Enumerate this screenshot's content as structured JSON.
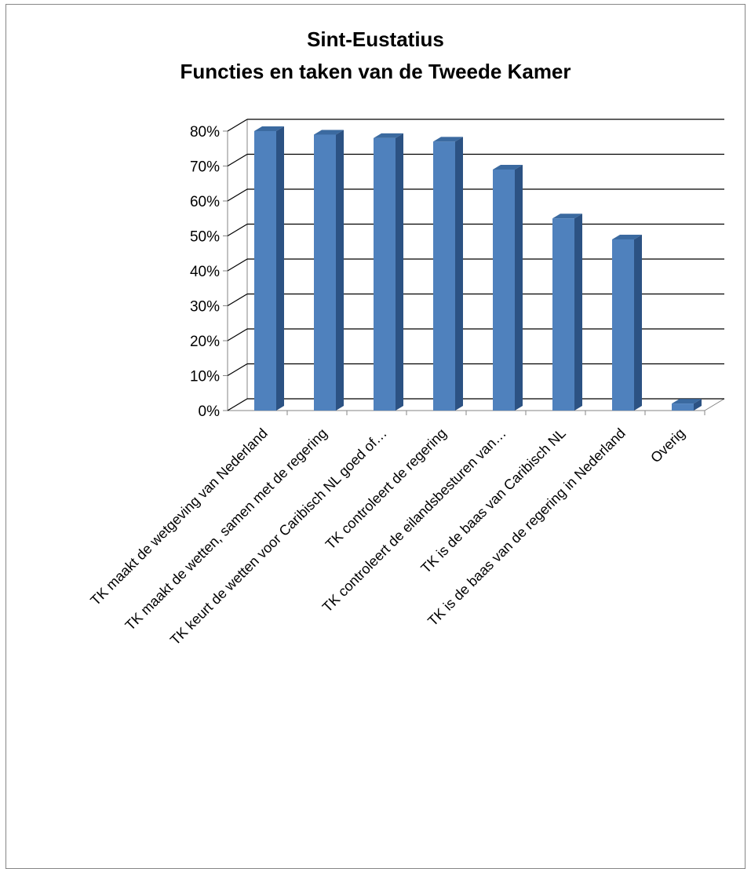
{
  "chart_data": {
    "type": "bar",
    "title": "Sint-Eustatius",
    "subtitle": "Functies en taken van de Tweede Kamer",
    "categories": [
      "TK maakt de wetgeving van Nederland",
      "TK maakt de wetten, samen met de regering",
      "TK keurt de wetten voor Caribisch NL goed of…",
      "TK controleert de regering",
      "TK controleert de eilandsbesturen van…",
      "TK is de baas van Caribisch NL",
      "TK is de baas van de regering in Nederland",
      "Overig"
    ],
    "values": [
      80,
      79,
      78,
      77,
      69,
      55,
      49,
      2
    ],
    "yticks": [
      "0%",
      "10%",
      "20%",
      "30%",
      "40%",
      "50%",
      "60%",
      "70%",
      "80%"
    ],
    "ylim": [
      0,
      80
    ],
    "grid": true,
    "legend": "none",
    "colors": {
      "bar_front": "#4F81BD",
      "bar_side": "#2C5283",
      "bar_top": "#3B6AA0",
      "grid": "#000000"
    }
  }
}
